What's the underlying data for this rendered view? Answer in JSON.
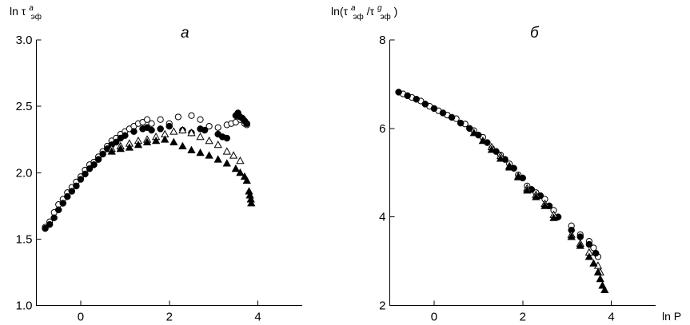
{
  "chart_data": [
    {
      "type": "scatter",
      "panel_label": "а",
      "ylabel_parts": [
        "ln τ",
        "а",
        "эф"
      ],
      "xlim": [
        -1,
        5
      ],
      "ylim": [
        1.0,
        3.0
      ],
      "x_ticks": [
        0,
        2,
        4
      ],
      "y_ticks": [
        1.0,
        1.5,
        2.0,
        2.5,
        3.0
      ],
      "y_tick_labels": [
        "1.0",
        "1.5",
        "2.0",
        "2.5",
        "3.0"
      ],
      "series": [
        {
          "marker": "open-circle",
          "points": [
            [
              -0.8,
              1.59
            ],
            [
              -0.7,
              1.63
            ],
            [
              -0.6,
              1.7
            ],
            [
              -0.5,
              1.76
            ],
            [
              -0.4,
              1.8
            ],
            [
              -0.3,
              1.85
            ],
            [
              -0.2,
              1.89
            ],
            [
              -0.1,
              1.93
            ],
            [
              0.0,
              1.97
            ],
            [
              0.1,
              2.02
            ],
            [
              0.2,
              2.06
            ],
            [
              0.3,
              2.08
            ],
            [
              0.4,
              2.12
            ],
            [
              0.5,
              2.16
            ],
            [
              0.6,
              2.2
            ],
            [
              0.7,
              2.24
            ],
            [
              0.8,
              2.26
            ],
            [
              0.9,
              2.29
            ],
            [
              1.0,
              2.31
            ],
            [
              1.1,
              2.33
            ],
            [
              1.2,
              2.35
            ],
            [
              1.3,
              2.37
            ],
            [
              1.4,
              2.38
            ],
            [
              1.5,
              2.4
            ],
            [
              1.6,
              2.37
            ],
            [
              1.8,
              2.4
            ],
            [
              2.0,
              2.37
            ],
            [
              2.2,
              2.42
            ],
            [
              2.5,
              2.43
            ],
            [
              2.7,
              2.4
            ],
            [
              2.9,
              2.35
            ],
            [
              3.1,
              2.34
            ],
            [
              3.3,
              2.36
            ],
            [
              3.4,
              2.37
            ],
            [
              3.5,
              2.38
            ],
            [
              3.6,
              2.4
            ],
            [
              3.7,
              2.37
            ],
            [
              3.75,
              2.36
            ]
          ]
        },
        {
          "marker": "filled-circle",
          "points": [
            [
              -0.8,
              1.58
            ],
            [
              -0.7,
              1.61
            ],
            [
              -0.6,
              1.66
            ],
            [
              -0.5,
              1.72
            ],
            [
              -0.4,
              1.77
            ],
            [
              -0.3,
              1.82
            ],
            [
              -0.2,
              1.86
            ],
            [
              -0.1,
              1.9
            ],
            [
              0.0,
              1.95
            ],
            [
              0.1,
              1.99
            ],
            [
              0.2,
              2.03
            ],
            [
              0.3,
              2.06
            ],
            [
              0.4,
              2.1
            ],
            [
              0.5,
              2.14
            ],
            [
              0.6,
              2.18
            ],
            [
              0.7,
              2.21
            ],
            [
              0.8,
              2.23
            ],
            [
              0.9,
              2.26
            ],
            [
              1.0,
              2.28
            ],
            [
              1.2,
              2.31
            ],
            [
              1.4,
              2.33
            ],
            [
              1.5,
              2.34
            ],
            [
              1.6,
              2.32
            ],
            [
              1.8,
              2.33
            ],
            [
              2.0,
              2.35
            ],
            [
              2.3,
              2.32
            ],
            [
              2.5,
              2.3
            ],
            [
              2.7,
              2.33
            ],
            [
              2.8,
              2.32
            ],
            [
              3.1,
              2.29
            ],
            [
              3.2,
              2.27
            ],
            [
              3.3,
              2.26
            ],
            [
              3.5,
              2.43
            ],
            [
              3.55,
              2.45
            ],
            [
              3.6,
              2.42
            ],
            [
              3.65,
              2.41
            ],
            [
              3.7,
              2.39
            ],
            [
              3.75,
              2.37
            ]
          ]
        },
        {
          "marker": "open-triangle",
          "points": [
            [
              0.7,
              2.18
            ],
            [
              0.9,
              2.2
            ],
            [
              1.1,
              2.22
            ],
            [
              1.3,
              2.24
            ],
            [
              1.5,
              2.25
            ],
            [
              1.7,
              2.27
            ],
            [
              1.9,
              2.29
            ],
            [
              2.1,
              2.31
            ],
            [
              2.3,
              2.32
            ],
            [
              2.5,
              2.3
            ],
            [
              2.7,
              2.27
            ],
            [
              2.9,
              2.24
            ],
            [
              3.1,
              2.21
            ],
            [
              3.3,
              2.16
            ],
            [
              3.45,
              2.13
            ],
            [
              3.6,
              2.09
            ]
          ]
        },
        {
          "marker": "filled-triangle",
          "points": [
            [
              0.7,
              2.16
            ],
            [
              0.9,
              2.18
            ],
            [
              1.1,
              2.19
            ],
            [
              1.3,
              2.21
            ],
            [
              1.5,
              2.23
            ],
            [
              1.7,
              2.24
            ],
            [
              1.9,
              2.25
            ],
            [
              2.1,
              2.23
            ],
            [
              2.3,
              2.2
            ],
            [
              2.5,
              2.17
            ],
            [
              2.7,
              2.15
            ],
            [
              2.9,
              2.13
            ],
            [
              3.1,
              2.1
            ],
            [
              3.3,
              2.07
            ],
            [
              3.5,
              2.03
            ],
            [
              3.6,
              2.0
            ],
            [
              3.7,
              1.97
            ],
            [
              3.75,
              1.94
            ],
            [
              3.8,
              1.86
            ],
            [
              3.82,
              1.83
            ],
            [
              3.84,
              1.8
            ],
            [
              3.85,
              1.77
            ]
          ]
        }
      ]
    },
    {
      "type": "scatter",
      "panel_label": "б",
      "ylabel_parts": [
        "ln(τ",
        "а",
        "эф",
        "/τ",
        "g",
        "эф",
        ")"
      ],
      "xlabel": "ln P",
      "xlim": [
        -1,
        5
      ],
      "ylim": [
        2,
        8
      ],
      "x_ticks": [
        0,
        2,
        4
      ],
      "y_ticks": [
        2,
        4,
        6,
        8
      ],
      "y_tick_labels": [
        "2",
        "4",
        "6",
        "8"
      ],
      "series": [
        {
          "marker": "open-circle",
          "points": [
            [
              -0.7,
              6.78
            ],
            [
              -0.5,
              6.7
            ],
            [
              -0.3,
              6.62
            ],
            [
              -0.1,
              6.5
            ],
            [
              0.1,
              6.4
            ],
            [
              0.3,
              6.3
            ],
            [
              0.5,
              6.22
            ],
            [
              0.7,
              6.1
            ],
            [
              0.9,
              5.95
            ],
            [
              1.1,
              5.8
            ],
            [
              1.3,
              5.55
            ],
            [
              1.5,
              5.4
            ],
            [
              1.7,
              5.2
            ],
            [
              1.9,
              4.95
            ],
            [
              2.1,
              4.7
            ],
            [
              2.3,
              4.55
            ],
            [
              2.5,
              4.4
            ],
            [
              2.7,
              4.15
            ],
            [
              3.1,
              3.8
            ],
            [
              3.3,
              3.6
            ],
            [
              3.5,
              3.45
            ],
            [
              3.6,
              3.3
            ],
            [
              3.7,
              3.1
            ]
          ]
        },
        {
          "marker": "filled-circle",
          "points": [
            [
              -0.8,
              6.82
            ],
            [
              -0.6,
              6.74
            ],
            [
              -0.4,
              6.66
            ],
            [
              -0.2,
              6.55
            ],
            [
              0.0,
              6.45
            ],
            [
              0.2,
              6.35
            ],
            [
              0.4,
              6.25
            ],
            [
              0.6,
              6.12
            ],
            [
              0.8,
              6.0
            ],
            [
              1.0,
              5.85
            ],
            [
              1.2,
              5.68
            ],
            [
              1.4,
              5.48
            ],
            [
              1.6,
              5.3
            ],
            [
              1.8,
              5.1
            ],
            [
              2.0,
              4.88
            ],
            [
              2.2,
              4.62
            ],
            [
              2.4,
              4.48
            ],
            [
              2.6,
              4.25
            ],
            [
              2.8,
              4.0
            ],
            [
              3.1,
              3.7
            ],
            [
              3.3,
              3.55
            ],
            [
              3.5,
              3.38
            ],
            [
              3.65,
              3.18
            ]
          ]
        },
        {
          "marker": "open-triangle",
          "points": [
            [
              1.3,
              5.58
            ],
            [
              1.5,
              5.38
            ],
            [
              1.7,
              5.15
            ],
            [
              1.9,
              4.92
            ],
            [
              2.1,
              4.65
            ],
            [
              2.3,
              4.5
            ],
            [
              2.5,
              4.3
            ],
            [
              2.7,
              4.05
            ],
            [
              3.1,
              3.6
            ],
            [
              3.3,
              3.4
            ],
            [
              3.5,
              3.2
            ],
            [
              3.7,
              2.9
            ],
            [
              3.75,
              2.75
            ]
          ]
        },
        {
          "marker": "filled-triangle",
          "points": [
            [
              0.9,
              5.9
            ],
            [
              1.1,
              5.72
            ],
            [
              1.3,
              5.52
            ],
            [
              1.5,
              5.32
            ],
            [
              1.7,
              5.12
            ],
            [
              1.9,
              4.9
            ],
            [
              2.1,
              4.6
            ],
            [
              2.3,
              4.45
            ],
            [
              2.5,
              4.25
            ],
            [
              2.7,
              3.98
            ],
            [
              3.1,
              3.55
            ],
            [
              3.3,
              3.35
            ],
            [
              3.5,
              3.1
            ],
            [
              3.6,
              2.95
            ],
            [
              3.7,
              2.75
            ],
            [
              3.75,
              2.6
            ],
            [
              3.8,
              2.45
            ],
            [
              3.85,
              2.35
            ]
          ]
        }
      ]
    }
  ]
}
